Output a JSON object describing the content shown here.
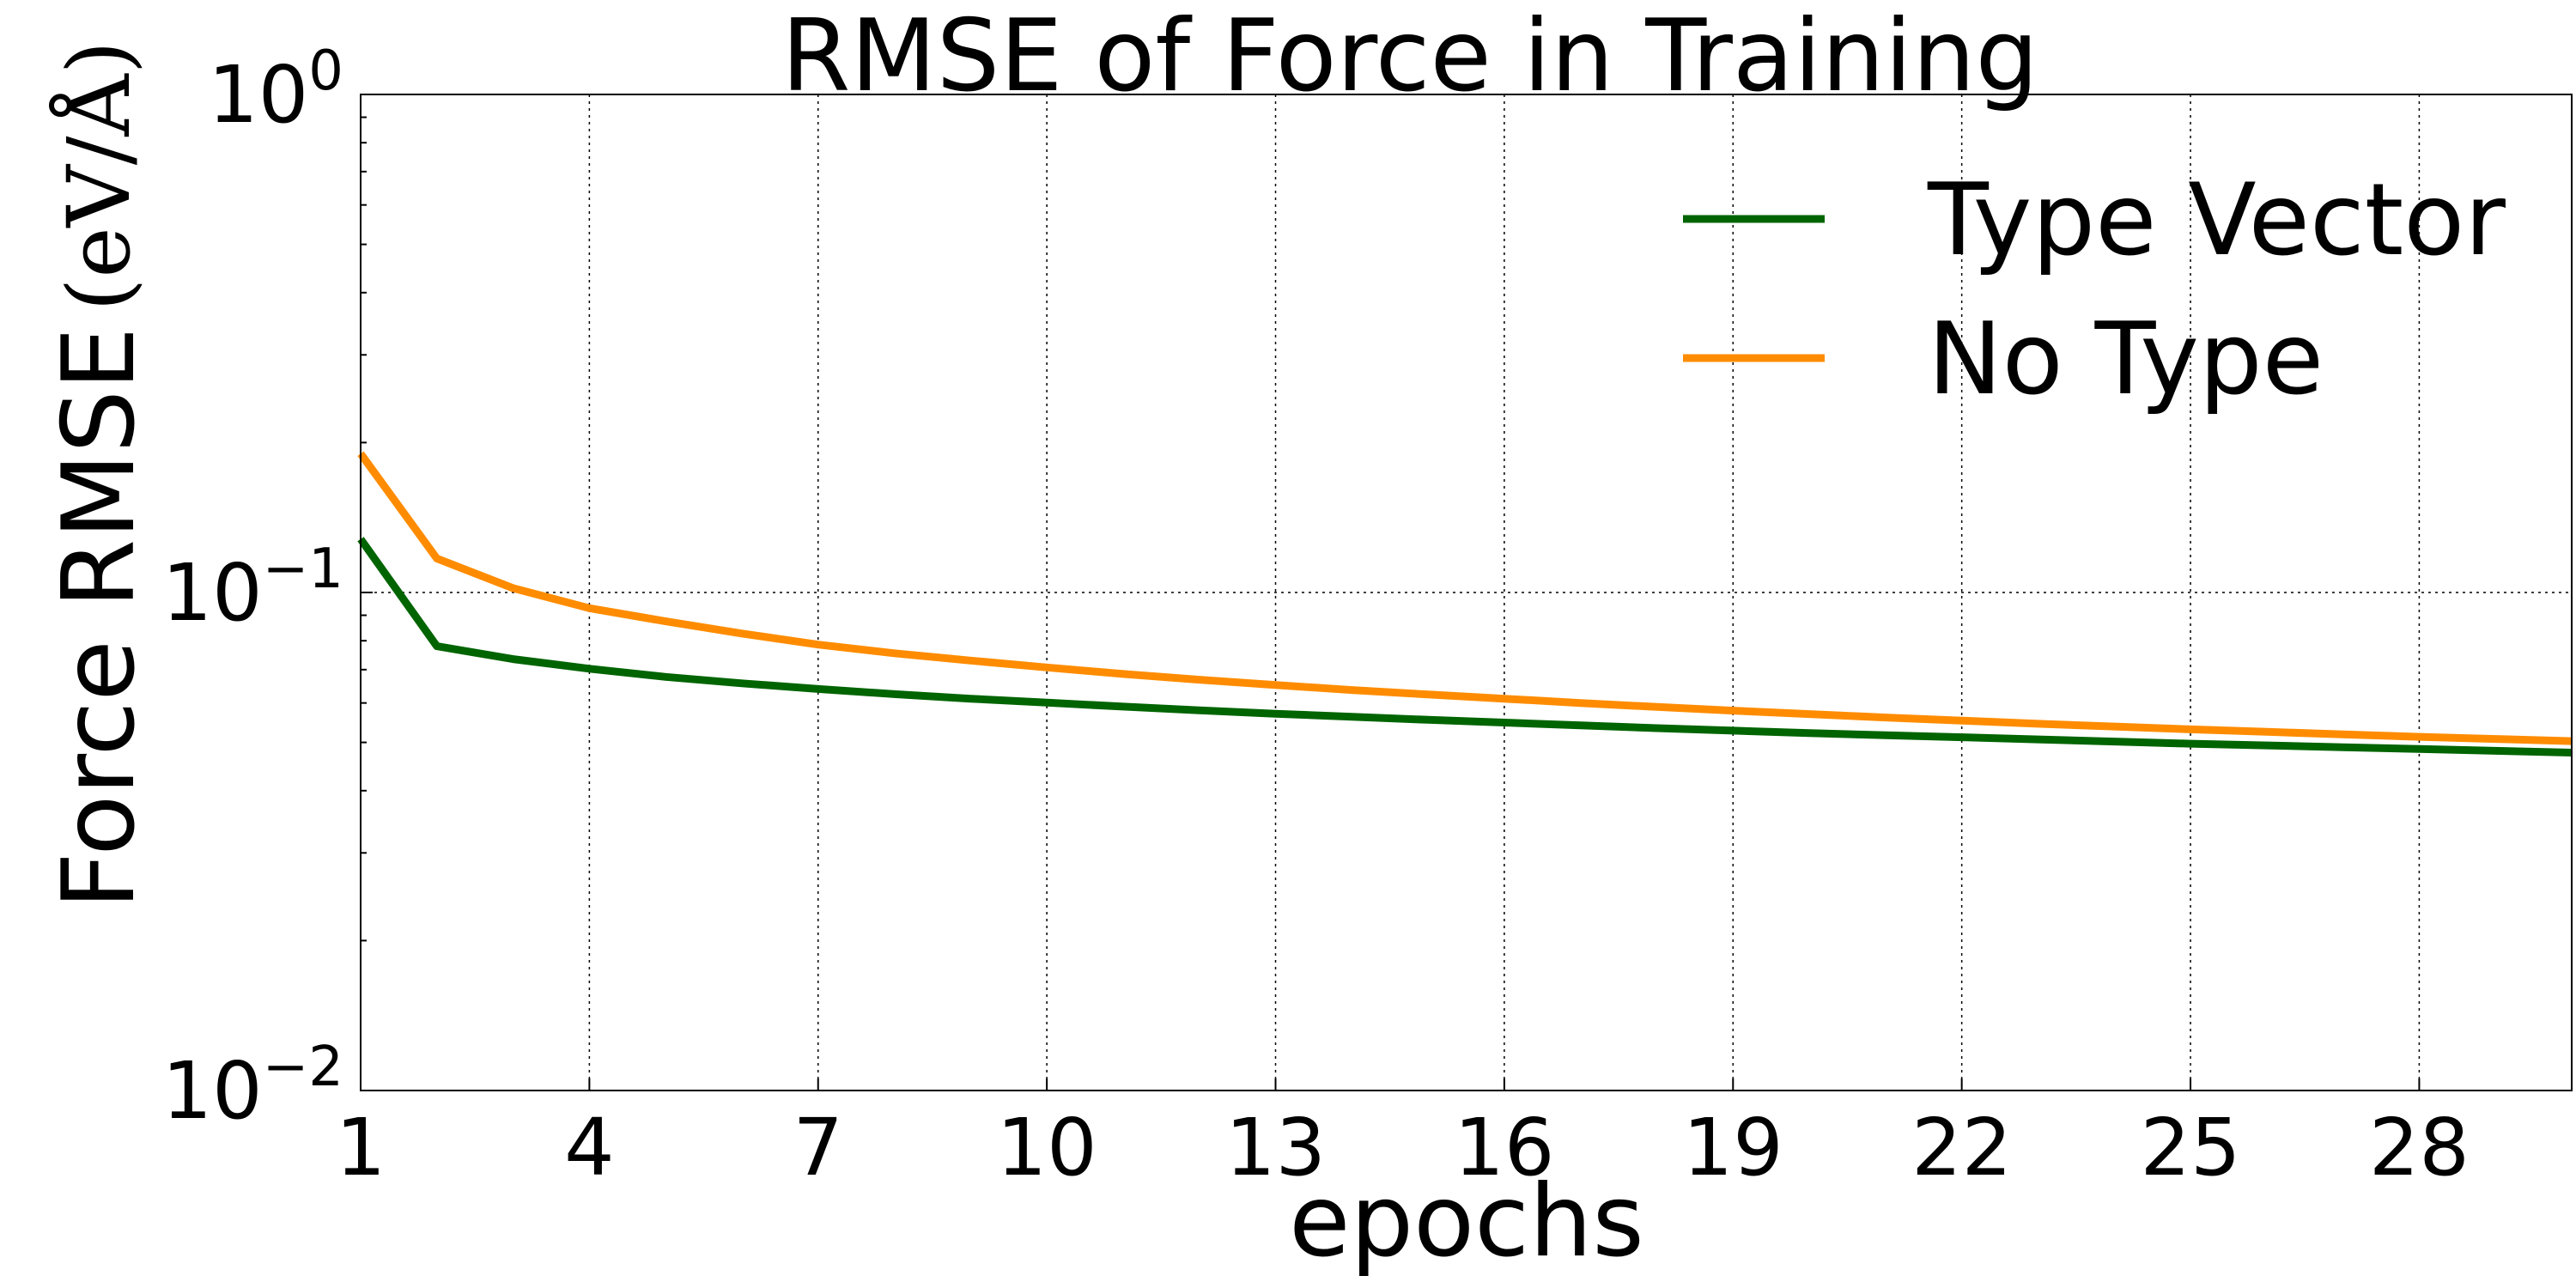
{
  "chart_data": {
    "type": "line",
    "title": "RMSE of Force in Training",
    "xlabel": "epochs",
    "ylabel": "Force RMSE",
    "ylabel_unit": "(eV/Å)",
    "yscale": "log",
    "ylim": [
      0.01,
      1
    ],
    "xlim": [
      1,
      30
    ],
    "xticks": [
      1,
      4,
      7,
      10,
      13,
      16,
      19,
      22,
      25,
      28
    ],
    "xtick_labels": [
      "1",
      "4",
      "7",
      "10",
      "13",
      "16",
      "19",
      "22",
      "25",
      "28"
    ],
    "yticks": [
      0.01,
      0.1,
      1
    ],
    "ytick_labels": [
      {
        "base": "10",
        "exp": "−2"
      },
      {
        "base": "10",
        "exp": "−1"
      },
      {
        "base": "10",
        "exp": "0"
      }
    ],
    "grid": true,
    "legend_position": "top-right",
    "x": [
      1,
      2,
      3,
      4,
      5,
      6,
      7,
      8,
      9,
      10,
      11,
      12,
      13,
      14,
      15,
      16,
      17,
      18,
      19,
      20,
      21,
      22,
      23,
      24,
      25,
      26,
      27,
      28,
      29,
      30
    ],
    "series": [
      {
        "name": "Type Vector",
        "color": "#006400",
        "values": [
          0.128,
          0.078,
          0.0735,
          0.0703,
          0.0677,
          0.0657,
          0.064,
          0.0625,
          0.0612,
          0.0601,
          0.059,
          0.058,
          0.0571,
          0.0563,
          0.0555,
          0.0548,
          0.0541,
          0.0534,
          0.0528,
          0.0522,
          0.0517,
          0.0512,
          0.0507,
          0.0502,
          0.0497,
          0.0493,
          0.0489,
          0.0485,
          0.0481,
          0.0477
        ]
      },
      {
        "name": "No Type",
        "color": "#FF8C00",
        "values": [
          0.19,
          0.117,
          0.102,
          0.093,
          0.0875,
          0.0827,
          0.0786,
          0.0755,
          0.073,
          0.0707,
          0.0686,
          0.0668,
          0.0652,
          0.0637,
          0.0624,
          0.0612,
          0.06,
          0.0589,
          0.0579,
          0.057,
          0.0561,
          0.0553,
          0.0545,
          0.0538,
          0.0531,
          0.0525,
          0.0519,
          0.0513,
          0.0508,
          0.0503
        ]
      }
    ]
  }
}
